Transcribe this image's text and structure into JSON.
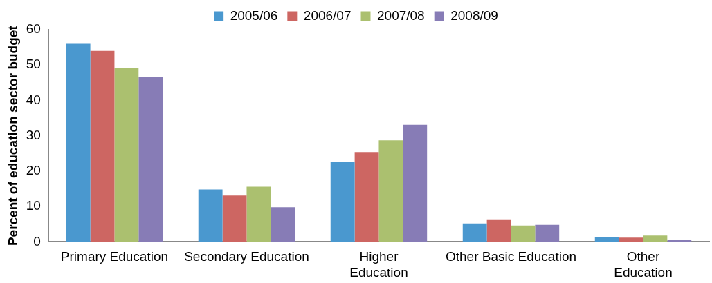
{
  "chart_data": {
    "type": "bar",
    "ylabel": "Percent of education sector budget",
    "categories": [
      "Primary Education",
      "Secondary Education",
      "Higher Education",
      "Other Basic Education",
      "Other Education"
    ],
    "series": [
      {
        "name": "2005/06",
        "color": "#4a98cf",
        "values": [
          56,
          14.8,
          22.6,
          5.2,
          1.4
        ]
      },
      {
        "name": "2006/07",
        "color": "#cd6662",
        "values": [
          54,
          13.1,
          25.4,
          6.2,
          1.2
        ]
      },
      {
        "name": "2007/08",
        "color": "#abc06f",
        "values": [
          49.2,
          15.6,
          28.7,
          4.6,
          1.8
        ]
      },
      {
        "name": "2008/09",
        "color": "#877cb6",
        "values": [
          46.6,
          9.8,
          33.1,
          4.8,
          0.6
        ]
      }
    ],
    "ylim": [
      0,
      60
    ],
    "yticks": [
      0,
      10,
      20,
      30,
      40,
      50,
      60
    ],
    "grid": false,
    "legend": "top"
  }
}
